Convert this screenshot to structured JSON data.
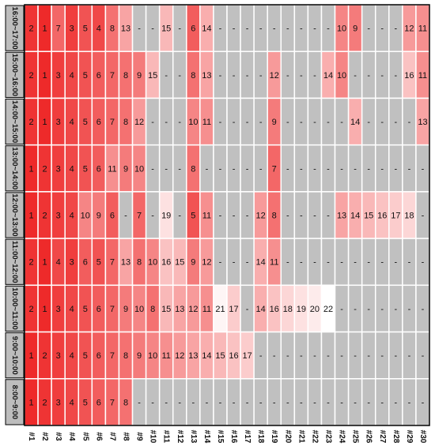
{
  "chart_data": {
    "type": "heatmap",
    "title": "",
    "xlabel": "",
    "ylabel": "",
    "columns": [
      "#1",
      "#2",
      "#3",
      "#4",
      "#5",
      "#6",
      "#7",
      "#8",
      "#9",
      "#10",
      "#11",
      "#12",
      "#13",
      "#14",
      "#15",
      "#16",
      "#17",
      "#18",
      "#19",
      "#20",
      "#21",
      "#22",
      "#23",
      "#24",
      "#25",
      "#26",
      "#27",
      "#28",
      "#29",
      "#30"
    ],
    "rows": [
      "16:00~17:00",
      "15:00~16:00",
      "14:00~15:00",
      "13:00~14:00",
      "12:00~13:00",
      "11:00~12:00",
      "10:00~11:00",
      "9:00~10:00",
      "8:00~9:00"
    ],
    "empty_marker": "-",
    "values": [
      [
        2,
        1,
        7,
        3,
        5,
        4,
        8,
        13,
        null,
        null,
        15,
        null,
        6,
        14,
        null,
        null,
        null,
        null,
        null,
        null,
        null,
        null,
        null,
        10,
        9,
        null,
        null,
        null,
        12,
        11
      ],
      [
        2,
        1,
        3,
        4,
        5,
        6,
        7,
        8,
        9,
        15,
        null,
        null,
        8,
        13,
        null,
        null,
        null,
        null,
        12,
        null,
        null,
        null,
        14,
        10,
        null,
        null,
        null,
        null,
        16,
        11
      ],
      [
        2,
        1,
        3,
        4,
        5,
        6,
        7,
        8,
        12,
        null,
        null,
        null,
        10,
        11,
        null,
        null,
        null,
        null,
        9,
        null,
        null,
        null,
        null,
        null,
        14,
        null,
        null,
        null,
        null,
        13
      ],
      [
        1,
        2,
        3,
        4,
        5,
        6,
        11,
        9,
        10,
        null,
        null,
        null,
        8,
        null,
        null,
        null,
        null,
        null,
        7,
        null,
        null,
        null,
        null,
        null,
        null,
        null,
        null,
        null,
        null,
        null
      ],
      [
        1,
        2,
        3,
        4,
        10,
        9,
        6,
        null,
        7,
        null,
        19,
        null,
        5,
        11,
        null,
        null,
        null,
        12,
        8,
        null,
        null,
        null,
        null,
        13,
        14,
        15,
        16,
        17,
        18,
        null
      ],
      [
        2,
        1,
        4,
        3,
        6,
        5,
        7,
        13,
        8,
        10,
        16,
        15,
        9,
        12,
        null,
        null,
        null,
        14,
        11,
        null,
        null,
        null,
        null,
        null,
        null,
        null,
        null,
        null,
        null,
        null
      ],
      [
        2,
        1,
        3,
        4,
        5,
        6,
        7,
        9,
        10,
        8,
        15,
        13,
        12,
        11,
        21,
        17,
        null,
        14,
        16,
        18,
        19,
        20,
        22,
        null,
        null,
        null,
        null,
        null,
        null,
        null
      ],
      [
        1,
        2,
        3,
        4,
        5,
        6,
        7,
        8,
        9,
        10,
        11,
        12,
        13,
        14,
        15,
        16,
        17,
        null,
        null,
        null,
        null,
        null,
        null,
        null,
        null,
        null,
        null,
        null,
        null,
        null
      ],
      [
        1,
        2,
        3,
        4,
        5,
        6,
        7,
        8,
        null,
        null,
        null,
        null,
        null,
        null,
        null,
        null,
        null,
        null,
        null,
        null,
        null,
        null,
        null,
        null,
        null,
        null,
        null,
        null,
        null,
        null
      ]
    ],
    "color_scale": {
      "low": "#ee2a2a",
      "high": "#ffffff",
      "empty": "#c0c0c0",
      "min": 1,
      "max": 22
    }
  }
}
